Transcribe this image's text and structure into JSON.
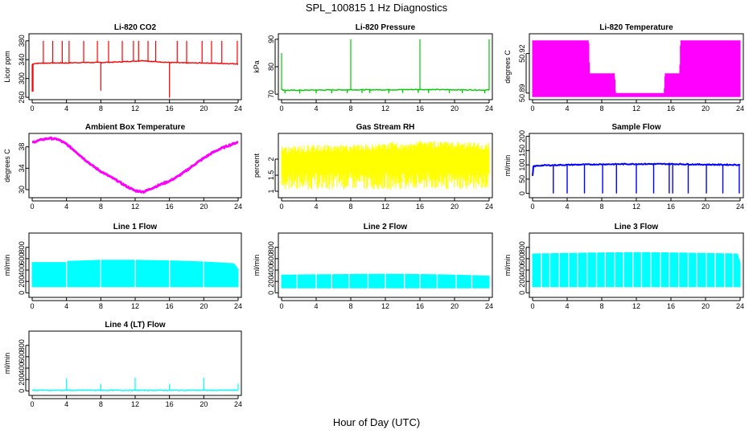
{
  "title": "SPL_100815  1 Hz Diagnostics",
  "xlabel": "Hour of Day (UTC)",
  "chart_data": [
    {
      "type": "line",
      "title": "Li-820 CO2",
      "ylabel": "Licor ppm",
      "color": "#ff0000",
      "ylim": [
        255,
        395
      ],
      "yticks": [
        260,
        300,
        340,
        380
      ],
      "xticks": [
        0,
        4,
        8,
        12,
        16,
        20,
        24
      ],
      "xlim": [
        0,
        24
      ],
      "x": [
        0,
        0.3,
        2,
        4,
        6,
        8,
        10,
        12,
        13,
        14,
        16,
        18,
        20,
        22,
        24
      ],
      "y": [
        330,
        332,
        333,
        333,
        334,
        334,
        335,
        337,
        338,
        336,
        334,
        333,
        333,
        332,
        331
      ],
      "spikes": [
        [
          0.0,
          272
        ],
        [
          0.1,
          272
        ],
        [
          1.3,
          380
        ],
        [
          2.4,
          380
        ],
        [
          3.5,
          380
        ],
        [
          4.3,
          380
        ],
        [
          6.0,
          380
        ],
        [
          7.6,
          380
        ],
        [
          8.0,
          274
        ],
        [
          8.9,
          380
        ],
        [
          10.5,
          380
        ],
        [
          11.8,
          380
        ],
        [
          12.4,
          380
        ],
        [
          13.5,
          380
        ],
        [
          14.4,
          380
        ],
        [
          16.0,
          259
        ],
        [
          16.9,
          380
        ],
        [
          18.0,
          380
        ],
        [
          19.8,
          380
        ],
        [
          20.9,
          380
        ],
        [
          22.1,
          380
        ],
        [
          23.9,
          380
        ]
      ]
    },
    {
      "type": "line",
      "title": "Li-820 Pressure",
      "ylabel": "kPa",
      "color": "#00cc00",
      "ylim": [
        68,
        92
      ],
      "yticks": [
        70,
        80,
        90
      ],
      "xticks": [
        0,
        4,
        8,
        12,
        16,
        20,
        24
      ],
      "xlim": [
        0,
        24
      ],
      "x": [
        0,
        0.2,
        1,
        4,
        8,
        12,
        16,
        20,
        24
      ],
      "y": [
        71.6,
        71.5,
        71.4,
        71.5,
        71.6,
        71.6,
        71.7,
        71.6,
        71.5
      ],
      "spikes": [
        [
          0.0,
          85
        ],
        [
          8.0,
          90
        ],
        [
          16.0,
          90
        ],
        [
          24.0,
          90
        ]
      ],
      "dips": [
        0.4,
        2.1,
        4.0,
        5.8,
        7.6,
        9.3,
        10.2,
        12.4,
        14.0,
        15.8,
        17.0,
        19.4,
        20.9,
        23.5
      ]
    },
    {
      "type": "area",
      "title": "Li-820 Temperature",
      "ylabel": "degrees C",
      "color": "#ff00ff",
      "ylim": [
        50.885,
        50.935
      ],
      "yticks": [
        50.89,
        50.92
      ],
      "xticks": [
        0,
        4,
        8,
        12,
        16,
        20,
        24
      ],
      "xlim": [
        0,
        24
      ],
      "x": [
        0,
        6.5,
        6.6,
        9.5,
        9.6,
        15.2,
        15.3,
        17,
        17.1,
        24
      ],
      "y": [
        50.93,
        50.93,
        50.905,
        50.905,
        50.89,
        50.89,
        50.905,
        50.905,
        50.93,
        50.93
      ],
      "base": 50.887
    },
    {
      "type": "line",
      "title": "Ambient Box Temperature",
      "ylabel": "degrees C",
      "color": "#ff00ff",
      "ylim": [
        28.5,
        40.5
      ],
      "yticks": [
        30,
        34,
        38
      ],
      "xticks": [
        0,
        4,
        8,
        12,
        16,
        20,
        24
      ],
      "xlim": [
        0,
        24
      ],
      "x": [
        0,
        1,
        2,
        3,
        4,
        5,
        6,
        7,
        8,
        9,
        10,
        11,
        12,
        13,
        14,
        15,
        16,
        17,
        18,
        19,
        20,
        21,
        22,
        23,
        24
      ],
      "y": [
        38.8,
        39.3,
        39.6,
        39.4,
        38.5,
        37.2,
        35.8,
        34.5,
        33.4,
        32.5,
        31.6,
        30.6,
        29.8,
        29.6,
        30.3,
        31.0,
        31.6,
        32.5,
        33.6,
        34.8,
        35.9,
        36.9,
        37.7,
        38.3,
        38.9
      ]
    },
    {
      "type": "area",
      "title": "Gas Stream RH",
      "ylabel": "percent",
      "color": "#ffff00",
      "ylim": [
        0.8,
        2.8
      ],
      "yticks": [
        1.0,
        1.5,
        2.0
      ],
      "xticks": [
        0,
        4,
        8,
        12,
        16,
        20,
        24
      ],
      "xlim": [
        0,
        24
      ],
      "x": [
        0,
        4,
        8,
        12,
        13,
        14,
        16,
        18,
        20,
        24
      ],
      "y": [
        2.4,
        2.45,
        2.45,
        2.5,
        2.55,
        2.45,
        2.6,
        2.55,
        2.55,
        2.5
      ],
      "base": 1.05
    },
    {
      "type": "line",
      "title": "Sample Flow",
      "ylabel": "ml/min",
      "color": "#0000ff",
      "ylim": [
        -15,
        210
      ],
      "yticks": [
        0,
        50,
        100,
        150,
        200
      ],
      "xticks": [
        0,
        4,
        8,
        12,
        16,
        20,
        24
      ],
      "xlim": [
        0,
        24
      ],
      "x": [
        0,
        0.1,
        1,
        4,
        8,
        12,
        16,
        20,
        24
      ],
      "y": [
        60,
        95,
        98,
        100,
        102,
        103,
        103,
        101,
        100
      ],
      "dips": [
        2.4,
        4.0,
        6.0,
        8.1,
        9.7,
        12.0,
        14.0,
        15.8,
        16.2,
        18.0,
        20.1,
        22.0,
        23.9
      ]
    },
    {
      "type": "area",
      "title": "Line 1 Flow",
      "ylabel": "ml/min",
      "color": "#00ffff",
      "ylim": [
        -80,
        1050
      ],
      "yticks": [
        0,
        200,
        400,
        600,
        800
      ],
      "xticks": [
        0,
        4,
        8,
        12,
        16,
        20,
        24
      ],
      "xlim": [
        0,
        24
      ],
      "x": [
        0,
        4,
        4.1,
        8,
        12,
        16,
        20,
        23.5,
        24
      ],
      "y": [
        540,
        540,
        560,
        580,
        580,
        570,
        550,
        520,
        420
      ],
      "base": 100,
      "gaps": [
        4.0,
        8.0,
        12.0,
        16.0,
        20.0
      ]
    },
    {
      "type": "area",
      "title": "Line 2 Flow",
      "ylabel": "ml/min",
      "color": "#00ffff",
      "ylim": [
        -80,
        1050
      ],
      "yticks": [
        0,
        200,
        400,
        600,
        800
      ],
      "xticks": [
        0,
        4,
        8,
        12,
        16,
        20,
        24
      ],
      "xlim": [
        0,
        24
      ],
      "x": [
        0,
        4,
        8,
        12,
        16,
        20,
        24
      ],
      "y": [
        320,
        325,
        330,
        335,
        330,
        320,
        300
      ],
      "base": 80,
      "gaps": [
        1.8,
        4.0,
        5.8,
        7.8,
        10.0,
        12.0,
        14.2,
        16.0,
        18.0,
        20.2,
        22.0
      ]
    },
    {
      "type": "area",
      "title": "Line 3 Flow",
      "ylabel": "ml/min",
      "color": "#00ffff",
      "ylim": [
        -80,
        1050
      ],
      "yticks": [
        0,
        200,
        400,
        600,
        800
      ],
      "xticks": [
        0,
        4,
        8,
        12,
        16,
        20,
        24
      ],
      "xlim": [
        0,
        24
      ],
      "x": [
        0,
        4,
        8,
        12,
        16,
        20,
        23.7,
        24
      ],
      "y": [
        690,
        700,
        710,
        715,
        710,
        700,
        690,
        540
      ],
      "base": 100,
      "gaps": [
        1.0,
        2.0,
        3.1,
        4.2,
        5.2,
        6.3,
        7.4,
        8.4,
        9.5,
        10.5,
        11.6,
        12.6,
        13.7,
        14.8,
        15.8,
        16.9,
        18.0,
        19.0,
        20.1,
        21.1,
        22.2,
        23.2
      ]
    },
    {
      "type": "line",
      "title": "Line 4 (LT) Flow",
      "ylabel": "ml/min",
      "color": "#00ffff",
      "ylim": [
        -80,
        1050
      ],
      "yticks": [
        0,
        200,
        400,
        600,
        800
      ],
      "xticks": [
        0,
        4,
        8,
        12,
        16,
        20,
        24
      ],
      "xlim": [
        0,
        24
      ],
      "x": [
        0,
        24
      ],
      "y": [
        10,
        10
      ],
      "spikes": [
        [
          4.0,
          220
        ],
        [
          8.0,
          120
        ],
        [
          12.0,
          230
        ],
        [
          16.0,
          120
        ],
        [
          20.0,
          230
        ],
        [
          24.0,
          130
        ]
      ]
    }
  ]
}
